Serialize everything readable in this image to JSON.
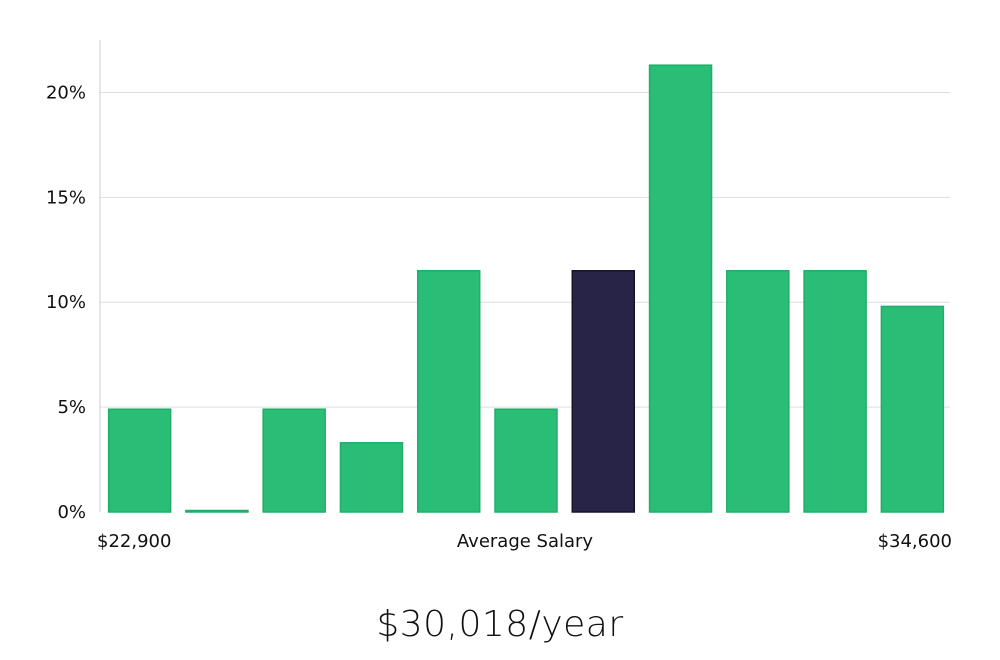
{
  "chart_data": {
    "type": "bar",
    "title": "",
    "xlabel": "Average Salary",
    "ylabel": "",
    "x_min_label": "$22,900",
    "x_max_label": "$34,600",
    "ylim": [
      0,
      22.5
    ],
    "yticks": [
      0,
      5,
      10,
      15,
      20
    ],
    "ytick_labels": [
      "0%",
      "5%",
      "10%",
      "15%",
      "20%"
    ],
    "grid": true,
    "highlight_index": 6,
    "values": [
      4.9,
      0.0,
      4.9,
      3.3,
      11.5,
      4.9,
      11.5,
      21.3,
      11.5,
      11.5,
      9.8
    ]
  },
  "colors": {
    "bar": "#2abd76",
    "bar_edge": "#21ad6a",
    "highlight": "#272447",
    "grid": "#dddddd",
    "axis": "#cccccc"
  },
  "summary": {
    "headline": "$30,018/year"
  }
}
